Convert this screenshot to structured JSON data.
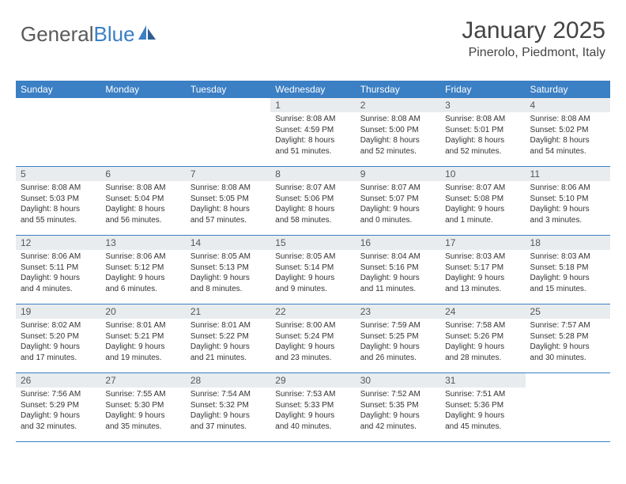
{
  "brand": {
    "name_part1": "General",
    "name_part2": "Blue",
    "text_color": "#5a5a5a",
    "accent_color": "#3b7fc4"
  },
  "header": {
    "title": "January 2025",
    "subtitle": "Pinerolo, Piedmont, Italy"
  },
  "colors": {
    "header_bg": "#3b7fc4",
    "header_text": "#ffffff",
    "daynum_bg": "#e9ecef",
    "border": "#3b7fc4",
    "body_text": "#333333"
  },
  "day_headers": [
    "Sunday",
    "Monday",
    "Tuesday",
    "Wednesday",
    "Thursday",
    "Friday",
    "Saturday"
  ],
  "weeks": [
    [
      {
        "day": "",
        "sunrise": "",
        "sunset": "",
        "daylight1": "",
        "daylight2": ""
      },
      {
        "day": "",
        "sunrise": "",
        "sunset": "",
        "daylight1": "",
        "daylight2": ""
      },
      {
        "day": "",
        "sunrise": "",
        "sunset": "",
        "daylight1": "",
        "daylight2": ""
      },
      {
        "day": "1",
        "sunrise": "Sunrise: 8:08 AM",
        "sunset": "Sunset: 4:59 PM",
        "daylight1": "Daylight: 8 hours",
        "daylight2": "and 51 minutes."
      },
      {
        "day": "2",
        "sunrise": "Sunrise: 8:08 AM",
        "sunset": "Sunset: 5:00 PM",
        "daylight1": "Daylight: 8 hours",
        "daylight2": "and 52 minutes."
      },
      {
        "day": "3",
        "sunrise": "Sunrise: 8:08 AM",
        "sunset": "Sunset: 5:01 PM",
        "daylight1": "Daylight: 8 hours",
        "daylight2": "and 52 minutes."
      },
      {
        "day": "4",
        "sunrise": "Sunrise: 8:08 AM",
        "sunset": "Sunset: 5:02 PM",
        "daylight1": "Daylight: 8 hours",
        "daylight2": "and 54 minutes."
      }
    ],
    [
      {
        "day": "5",
        "sunrise": "Sunrise: 8:08 AM",
        "sunset": "Sunset: 5:03 PM",
        "daylight1": "Daylight: 8 hours",
        "daylight2": "and 55 minutes."
      },
      {
        "day": "6",
        "sunrise": "Sunrise: 8:08 AM",
        "sunset": "Sunset: 5:04 PM",
        "daylight1": "Daylight: 8 hours",
        "daylight2": "and 56 minutes."
      },
      {
        "day": "7",
        "sunrise": "Sunrise: 8:08 AM",
        "sunset": "Sunset: 5:05 PM",
        "daylight1": "Daylight: 8 hours",
        "daylight2": "and 57 minutes."
      },
      {
        "day": "8",
        "sunrise": "Sunrise: 8:07 AM",
        "sunset": "Sunset: 5:06 PM",
        "daylight1": "Daylight: 8 hours",
        "daylight2": "and 58 minutes."
      },
      {
        "day": "9",
        "sunrise": "Sunrise: 8:07 AM",
        "sunset": "Sunset: 5:07 PM",
        "daylight1": "Daylight: 9 hours",
        "daylight2": "and 0 minutes."
      },
      {
        "day": "10",
        "sunrise": "Sunrise: 8:07 AM",
        "sunset": "Sunset: 5:08 PM",
        "daylight1": "Daylight: 9 hours",
        "daylight2": "and 1 minute."
      },
      {
        "day": "11",
        "sunrise": "Sunrise: 8:06 AM",
        "sunset": "Sunset: 5:10 PM",
        "daylight1": "Daylight: 9 hours",
        "daylight2": "and 3 minutes."
      }
    ],
    [
      {
        "day": "12",
        "sunrise": "Sunrise: 8:06 AM",
        "sunset": "Sunset: 5:11 PM",
        "daylight1": "Daylight: 9 hours",
        "daylight2": "and 4 minutes."
      },
      {
        "day": "13",
        "sunrise": "Sunrise: 8:06 AM",
        "sunset": "Sunset: 5:12 PM",
        "daylight1": "Daylight: 9 hours",
        "daylight2": "and 6 minutes."
      },
      {
        "day": "14",
        "sunrise": "Sunrise: 8:05 AM",
        "sunset": "Sunset: 5:13 PM",
        "daylight1": "Daylight: 9 hours",
        "daylight2": "and 8 minutes."
      },
      {
        "day": "15",
        "sunrise": "Sunrise: 8:05 AM",
        "sunset": "Sunset: 5:14 PM",
        "daylight1": "Daylight: 9 hours",
        "daylight2": "and 9 minutes."
      },
      {
        "day": "16",
        "sunrise": "Sunrise: 8:04 AM",
        "sunset": "Sunset: 5:16 PM",
        "daylight1": "Daylight: 9 hours",
        "daylight2": "and 11 minutes."
      },
      {
        "day": "17",
        "sunrise": "Sunrise: 8:03 AM",
        "sunset": "Sunset: 5:17 PM",
        "daylight1": "Daylight: 9 hours",
        "daylight2": "and 13 minutes."
      },
      {
        "day": "18",
        "sunrise": "Sunrise: 8:03 AM",
        "sunset": "Sunset: 5:18 PM",
        "daylight1": "Daylight: 9 hours",
        "daylight2": "and 15 minutes."
      }
    ],
    [
      {
        "day": "19",
        "sunrise": "Sunrise: 8:02 AM",
        "sunset": "Sunset: 5:20 PM",
        "daylight1": "Daylight: 9 hours",
        "daylight2": "and 17 minutes."
      },
      {
        "day": "20",
        "sunrise": "Sunrise: 8:01 AM",
        "sunset": "Sunset: 5:21 PM",
        "daylight1": "Daylight: 9 hours",
        "daylight2": "and 19 minutes."
      },
      {
        "day": "21",
        "sunrise": "Sunrise: 8:01 AM",
        "sunset": "Sunset: 5:22 PM",
        "daylight1": "Daylight: 9 hours",
        "daylight2": "and 21 minutes."
      },
      {
        "day": "22",
        "sunrise": "Sunrise: 8:00 AM",
        "sunset": "Sunset: 5:24 PM",
        "daylight1": "Daylight: 9 hours",
        "daylight2": "and 23 minutes."
      },
      {
        "day": "23",
        "sunrise": "Sunrise: 7:59 AM",
        "sunset": "Sunset: 5:25 PM",
        "daylight1": "Daylight: 9 hours",
        "daylight2": "and 26 minutes."
      },
      {
        "day": "24",
        "sunrise": "Sunrise: 7:58 AM",
        "sunset": "Sunset: 5:26 PM",
        "daylight1": "Daylight: 9 hours",
        "daylight2": "and 28 minutes."
      },
      {
        "day": "25",
        "sunrise": "Sunrise: 7:57 AM",
        "sunset": "Sunset: 5:28 PM",
        "daylight1": "Daylight: 9 hours",
        "daylight2": "and 30 minutes."
      }
    ],
    [
      {
        "day": "26",
        "sunrise": "Sunrise: 7:56 AM",
        "sunset": "Sunset: 5:29 PM",
        "daylight1": "Daylight: 9 hours",
        "daylight2": "and 32 minutes."
      },
      {
        "day": "27",
        "sunrise": "Sunrise: 7:55 AM",
        "sunset": "Sunset: 5:30 PM",
        "daylight1": "Daylight: 9 hours",
        "daylight2": "and 35 minutes."
      },
      {
        "day": "28",
        "sunrise": "Sunrise: 7:54 AM",
        "sunset": "Sunset: 5:32 PM",
        "daylight1": "Daylight: 9 hours",
        "daylight2": "and 37 minutes."
      },
      {
        "day": "29",
        "sunrise": "Sunrise: 7:53 AM",
        "sunset": "Sunset: 5:33 PM",
        "daylight1": "Daylight: 9 hours",
        "daylight2": "and 40 minutes."
      },
      {
        "day": "30",
        "sunrise": "Sunrise: 7:52 AM",
        "sunset": "Sunset: 5:35 PM",
        "daylight1": "Daylight: 9 hours",
        "daylight2": "and 42 minutes."
      },
      {
        "day": "31",
        "sunrise": "Sunrise: 7:51 AM",
        "sunset": "Sunset: 5:36 PM",
        "daylight1": "Daylight: 9 hours",
        "daylight2": "and 45 minutes."
      },
      {
        "day": "",
        "sunrise": "",
        "sunset": "",
        "daylight1": "",
        "daylight2": ""
      }
    ]
  ]
}
